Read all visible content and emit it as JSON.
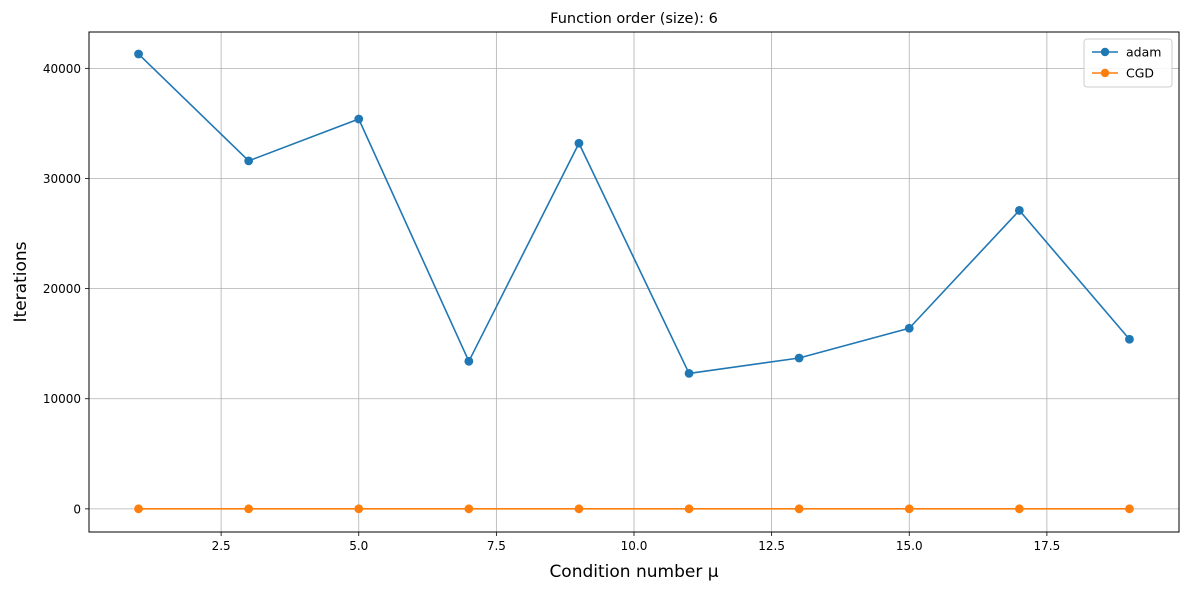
{
  "chart_data": {
    "type": "line",
    "title": "Function order (size): 6",
    "xlabel": "Condition number μ",
    "ylabel": "Iterations",
    "x": [
      1,
      3,
      5,
      7,
      9,
      11,
      13,
      15,
      17,
      19
    ],
    "xlim": [
      0.1,
      19.9
    ],
    "ylim": [
      -2100,
      43300
    ],
    "xticks": [
      2.5,
      5.0,
      7.5,
      10.0,
      12.5,
      15.0,
      17.5
    ],
    "xtick_labels": [
      "2.5",
      "5.0",
      "7.5",
      "10.0",
      "12.5",
      "15.0",
      "17.5"
    ],
    "yticks": [
      0,
      10000,
      20000,
      30000,
      40000
    ],
    "ytick_labels": [
      "0",
      "10000",
      "20000",
      "30000",
      "40000"
    ],
    "grid": true,
    "legend_position": "top-right",
    "series": [
      {
        "name": "adam",
        "color": "#1f77b4",
        "marker": "circle",
        "values": [
          41300,
          31600,
          35400,
          13400,
          33200,
          12300,
          13700,
          16400,
          27100,
          15400
        ]
      },
      {
        "name": "CGD",
        "color": "#ff7f0e",
        "marker": "circle",
        "values": [
          6,
          6,
          6,
          6,
          6,
          6,
          6,
          6,
          6,
          6
        ]
      }
    ]
  }
}
